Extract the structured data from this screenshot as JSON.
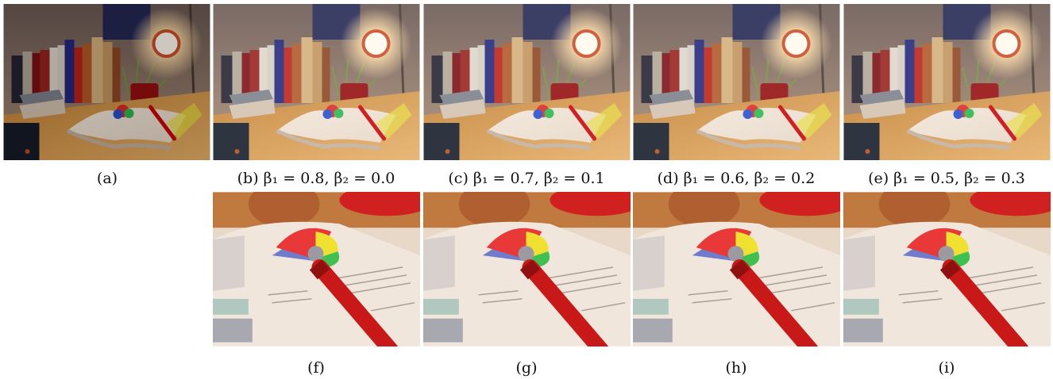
{
  "figure": {
    "panels": [
      {
        "caption": "(a)"
      },
      {
        "caption": "(b) β₁ = 0.8, β₂ = 0.0"
      },
      {
        "caption": "(c) β₁ = 0.7, β₂ = 0.1"
      },
      {
        "caption": "(d) β₁ = 0.6, β₂ = 0.2"
      },
      {
        "caption": "(e) β₁ = 0.5, β₂ = 0.3"
      },
      {
        "caption": "(f)"
      },
      {
        "caption": "(g)"
      },
      {
        "caption": "(h)"
      },
      {
        "caption": "(i)"
      }
    ]
  }
}
